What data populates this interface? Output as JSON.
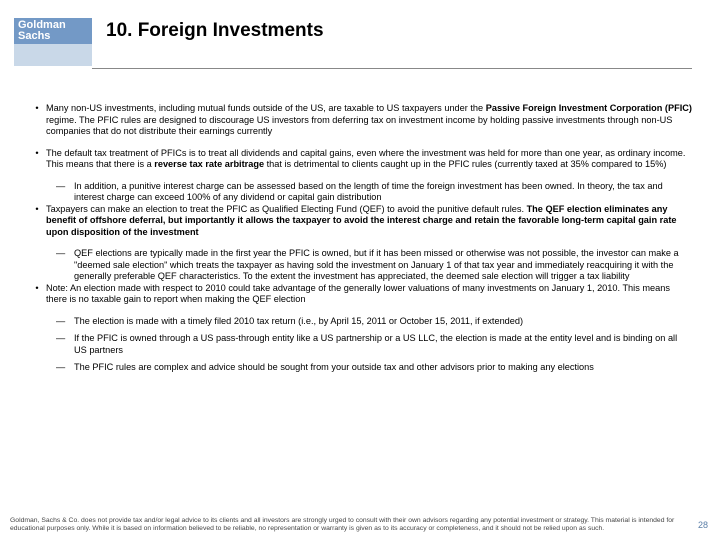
{
  "logo": {
    "line1": "Goldman",
    "line2": "Sachs"
  },
  "title": "10.  Foreign Investments",
  "bullets": [
    {
      "html": "Many non-US investments, including mutual funds outside of the US, are taxable to US taxpayers under the <b>Passive Foreign Investment Corporation (PFIC)</b> regime.  The PFIC rules are designed to discourage US investors from deferring tax on investment income by holding passive investments through non-US companies that do not distribute their earnings currently",
      "subs": []
    },
    {
      "html": "The default tax treatment of PFICs is to treat all dividends and capital gains, even where the investment was held for more than one year, as ordinary income. This means that there is a <b>reverse tax rate arbitrage</b> that is detrimental to clients caught up in the PFIC rules (currently taxed at 35% compared to 15%)",
      "subs": [
        {
          "html": "In addition, a punitive interest charge can be assessed based on the length of time the foreign investment has been owned.  In theory, the tax and interest charge can exceed 100% of any dividend or capital gain distribution"
        }
      ]
    },
    {
      "html": "Taxpayers can make an election to treat the PFIC as Qualified Electing Fund (QEF) to avoid the punitive default rules. <b>The QEF election eliminates any benefit of offshore deferral, but importantly it allows the taxpayer to avoid the interest charge and retain the favorable long-term capital gain rate upon disposition of the investment</b>",
      "subs": [
        {
          "html": "QEF elections are typically made in the first year the PFIC is owned, but if it has been missed or otherwise was not possible, the investor can make a \"deemed sale election\" which treats the taxpayer as having sold the investment on January 1 of that tax year and immediately reacquiring it with the generally preferable QEF characteristics.  To the extent the investment has appreciated, the deemed sale election will trigger a tax liability"
        }
      ]
    },
    {
      "html": "Note:  An election made with respect to 2010 could take advantage of the generally lower valuations of many investments on January 1, 2010.  This means there is no taxable gain to report when making the QEF election",
      "subs": [
        {
          "html": "The election is made with a timely filed 2010 tax return (i.e., by April 15, 2011 or October 15, 2011, if extended)"
        },
        {
          "html": "If the PFIC is owned through a US pass-through entity like a US partnership or a US LLC, the election is made at the entity level and is binding on all US partners"
        },
        {
          "html": "The PFIC rules are complex and advice should be sought from your outside tax and other advisors prior to making any elections"
        }
      ]
    }
  ],
  "disclaimer": "Goldman, Sachs & Co. does not provide tax and/or legal advice to its clients and all investors are strongly urged to consult with their own advisors regarding any potential investment or strategy.  This material is intended for educational purposes only.  While it is based on information believed to be reliable, no representation or warranty is given as to its accuracy or completeness, and it should not be relied upon as such.",
  "pagenum": "28",
  "colors": {
    "logo_bg_top": "#7399c6",
    "logo_bg_bottom": "#c9d8e8",
    "pagenum_color": "#5b7fa8"
  }
}
